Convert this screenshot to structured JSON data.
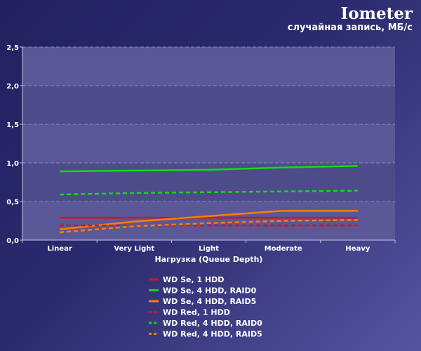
{
  "chart_data": {
    "type": "line",
    "title": "Iometer",
    "subtitle": "случайная запись, МБ/с",
    "xlabel": "Нагрузка (Queue Depth)",
    "ylabel": "",
    "categories": [
      "Linear",
      "Very Light",
      "Light",
      "Moderate",
      "Heavy"
    ],
    "ylim": [
      0,
      2.5
    ],
    "yticks": [
      "0,0",
      "0,5",
      "1,0",
      "1,5",
      "2,0",
      "2,5"
    ],
    "grid": true,
    "legend_position": "bottom",
    "series": [
      {
        "name": "WD Se, 1 HDD",
        "values": [
          0.29,
          0.29,
          0.29,
          0.29,
          0.29
        ],
        "color": "#dd1111",
        "dash": false
      },
      {
        "name": "WD Se, 4 HDD, RAID0",
        "values": [
          0.89,
          0.9,
          0.91,
          0.94,
          0.96
        ],
        "color": "#11dd11",
        "dash": false
      },
      {
        "name": "WD Se, 4 HDD, RAID5",
        "values": [
          0.14,
          0.24,
          0.31,
          0.38,
          0.38
        ],
        "color": "#ff7f00",
        "dash": false
      },
      {
        "name": "WD Red, 1 HDD",
        "values": [
          0.19,
          0.19,
          0.19,
          0.19,
          0.19
        ],
        "color": "#dd1111",
        "dash": true
      },
      {
        "name": "WD Red, 4 HDD, RAID0",
        "values": [
          0.59,
          0.61,
          0.62,
          0.63,
          0.64
        ],
        "color": "#11dd11",
        "dash": true
      },
      {
        "name": "WD Red, 4 HDD, RAID5",
        "values": [
          0.1,
          0.18,
          0.22,
          0.25,
          0.26
        ],
        "color": "#ff7f00",
        "dash": true
      }
    ]
  }
}
